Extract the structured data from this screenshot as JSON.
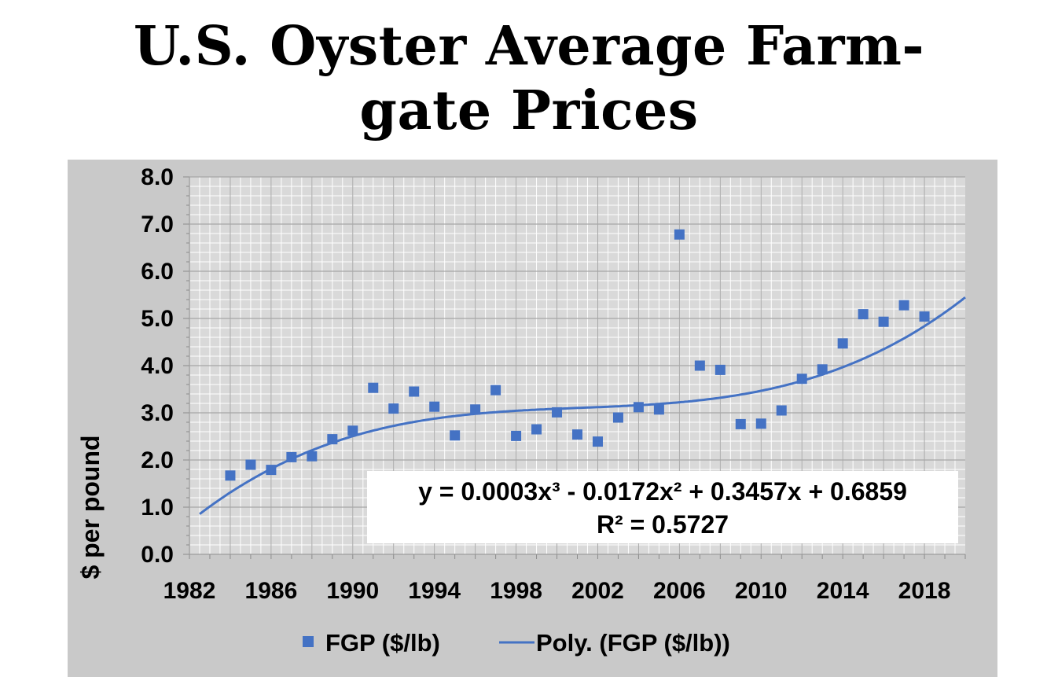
{
  "page": {
    "title_line1": "U.S. Oyster Average Farm-",
    "title_line2": "gate Prices"
  },
  "chart_data": {
    "type": "scatter",
    "title": "U.S. Oyster Average Farm-gate Prices",
    "ylabel": "$ per pound",
    "xlabel": "",
    "xlim": [
      1982,
      2020
    ],
    "ylim": [
      0,
      8
    ],
    "x_ticks": [
      "1982",
      "1986",
      "1990",
      "1994",
      "1998",
      "2002",
      "2006",
      "2010",
      "2014",
      "2018"
    ],
    "y_ticks": [
      "0.0",
      "1.0",
      "2.0",
      "3.0",
      "4.0",
      "5.0",
      "6.0",
      "7.0",
      "8.0"
    ],
    "grid": true,
    "series": [
      {
        "name": "FGP ($/lb)",
        "marker": "square",
        "color": "#4472C4",
        "x": [
          1984,
          1985,
          1986,
          1987,
          1988,
          1989,
          1990,
          1991,
          1992,
          1993,
          1994,
          1995,
          1996,
          1997,
          1998,
          1999,
          2000,
          2001,
          2002,
          2003,
          2004,
          2005,
          2006,
          2007,
          2008,
          2009,
          2010,
          2011,
          2012,
          2013,
          2014,
          2015,
          2016,
          2017,
          2018
        ],
        "y": [
          1.67,
          1.9,
          1.79,
          2.06,
          2.08,
          2.44,
          2.62,
          3.53,
          3.09,
          3.45,
          3.13,
          2.52,
          3.07,
          3.48,
          2.51,
          2.65,
          3.01,
          2.54,
          2.39,
          2.9,
          3.12,
          3.07,
          6.78,
          4.0,
          3.91,
          2.76,
          2.77,
          3.05,
          3.72,
          3.92,
          4.47,
          5.09,
          4.93,
          5.28,
          5.04
        ]
      }
    ],
    "trendline": {
      "name": "Poly. (FGP ($/lb))",
      "type": "polynomial",
      "order": 3,
      "coefficients": [
        0.0003,
        -0.0172,
        0.3457,
        0.6859
      ],
      "x_index_origin": 1982,
      "x_from": 1982.5,
      "x_to": 2020,
      "color": "#4472C4"
    },
    "equation": {
      "line1": "y = 0.0003x³ - 0.0172x² + 0.3457x + 0.6859",
      "line2": "R² = 0.5727"
    },
    "legend": {
      "position": "bottom",
      "entries": [
        {
          "label": "FGP ($/lb)",
          "kind": "marker"
        },
        {
          "label": "Poly. (FGP ($/lb))",
          "kind": "line"
        }
      ]
    },
    "colors": {
      "series": "#4472C4",
      "panel_bg": "#c9c9c9",
      "plot_bg": "#d9d9d9",
      "minor_grid": "#ffffff",
      "major_grid": "#a6a6a6"
    }
  }
}
